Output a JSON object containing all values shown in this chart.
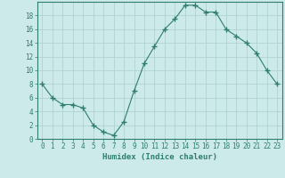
{
  "x": [
    0,
    1,
    2,
    3,
    4,
    5,
    6,
    7,
    8,
    9,
    10,
    11,
    12,
    13,
    14,
    15,
    16,
    17,
    18,
    19,
    20,
    21,
    22,
    23
  ],
  "y": [
    8,
    6,
    5,
    5,
    4.5,
    2,
    1,
    0.5,
    2.5,
    7,
    11,
    13.5,
    16,
    17.5,
    19.5,
    19.5,
    18.5,
    18.5,
    16,
    15,
    14,
    12.5,
    10,
    8
  ],
  "line_color": "#2e7d6e",
  "marker": "+",
  "marker_size": 4,
  "bg_color": "#cdeaea",
  "grid_color": "#aacece",
  "xlabel": "Humidex (Indice chaleur)",
  "xlim": [
    -0.5,
    23.5
  ],
  "ylim": [
    0,
    20
  ],
  "xticks": [
    0,
    1,
    2,
    3,
    4,
    5,
    6,
    7,
    8,
    9,
    10,
    11,
    12,
    13,
    14,
    15,
    16,
    17,
    18,
    19,
    20,
    21,
    22,
    23
  ],
  "yticks": [
    0,
    2,
    4,
    6,
    8,
    10,
    12,
    14,
    16,
    18
  ],
  "xlabel_fontsize": 6.5,
  "tick_fontsize": 5.5
}
